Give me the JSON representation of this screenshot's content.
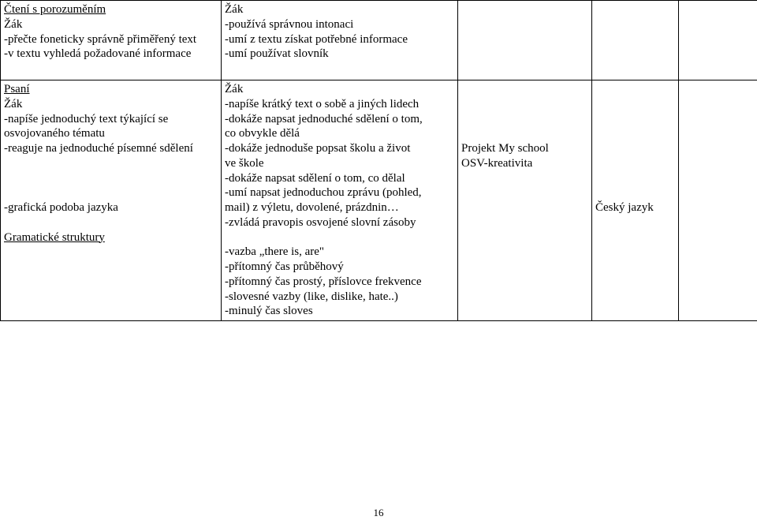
{
  "row1": {
    "col1": {
      "heading": "Čtení s porozuměním",
      "lines": [
        "Žák",
        "-přečte foneticky správně přiměřený text",
        "-v textu vyhledá požadované informace"
      ]
    },
    "col2": {
      "lines": [
        "Žák",
        "-používá správnou intonaci",
        "-umí z textu získat potřebné informace",
        "-umí používat slovník"
      ]
    }
  },
  "row2": {
    "col1": {
      "heading": "Psaní",
      "block1": [
        "Žák",
        "-napíše jednoduchý text týkající se",
        " osvojovaného tématu",
        "-reaguje na jednoduché písemné sdělení"
      ],
      "block2": [
        "-grafická podoba jazyka"
      ],
      "heading2": "Gramatické struktury"
    },
    "col2": {
      "block1": [
        "Žák",
        "-napíše krátký text o sobě a jiných lidech",
        "-dokáže napsat jednoduché sdělení o tom,",
        " co obvykle dělá",
        "-dokáže jednoduše popsat školu a život",
        " ve škole",
        "-dokáže napsat sdělení o tom, co dělal",
        "-umí napsat jednoduchou zprávu (pohled,",
        " mail) z výletu, dovolené, prázdnin…",
        "-zvládá pravopis osvojené slovní zásoby"
      ],
      "block2": [
        "-vazba „there is, are\"",
        "-přítomný čas průběhový",
        "-přítomný čas prostý, příslovce frekvence",
        "-slovesné vazby (like, dislike, hate..)",
        "-minulý čas sloves"
      ]
    },
    "col3": {
      "lines": [
        "Projekt My school",
        "OSV-kreativita"
      ]
    },
    "col4": {
      "lines": [
        "Český jazyk"
      ]
    }
  },
  "pagenum": "16"
}
